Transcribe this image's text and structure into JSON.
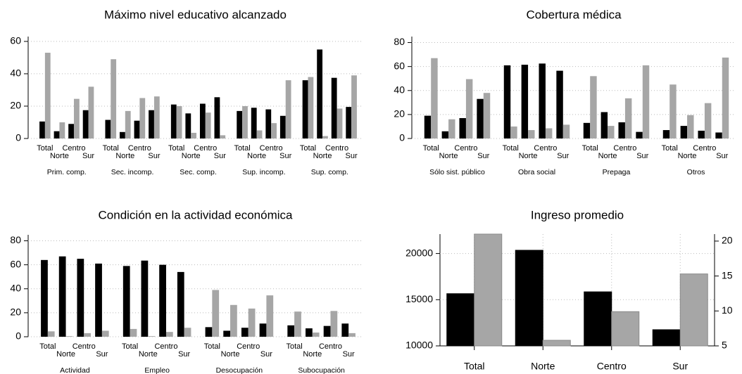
{
  "chart_data": [
    {
      "type": "grouped-bar",
      "title": "Máximo nivel educativo alcanzado",
      "groups": [
        "Prim. comp.",
        "Sec. incomp.",
        "Sec. comp.",
        "Sup. incomp.",
        "Sup. comp."
      ],
      "categories": [
        "Total",
        "Norte",
        "Centro",
        "Sur",
        "Total",
        "Norte",
        "Centro",
        "Sur",
        "Total",
        "Norte",
        "Centro",
        "Sur",
        "Total",
        "Norte",
        "Centro",
        "Sur",
        "Total",
        "Norte",
        "Centro",
        "Sur"
      ],
      "series": [
        {
          "color": "#000000",
          "values": [
            10.5,
            4.5,
            9,
            17.5,
            11.5,
            4,
            11,
            17.5,
            21,
            15.5,
            21.5,
            25.5,
            17,
            19,
            18,
            14,
            36,
            55,
            37.5,
            19.5
          ]
        },
        {
          "color": "#a6a6a6",
          "values": [
            53,
            10,
            24.5,
            32,
            49,
            17,
            25,
            26,
            20,
            3.5,
            16,
            2,
            20,
            5,
            9.5,
            36,
            38,
            1.5,
            18.5,
            39
          ]
        }
      ],
      "ylim": [
        0,
        63
      ],
      "yticks": [
        0,
        20,
        40,
        60
      ],
      "grid": true
    },
    {
      "type": "grouped-bar",
      "title": "Cobertura médica",
      "groups": [
        "Sólo sist. público",
        "Obra social",
        "Prepaga",
        "Otros"
      ],
      "categories": [
        "Total",
        "Norte",
        "Centro",
        "Sur",
        "Total",
        "Norte",
        "Centro",
        "Sur",
        "Total",
        "Norte",
        "Centro",
        "Sur",
        "Total",
        "Norte",
        "Centro",
        "Sur"
      ],
      "series": [
        {
          "color": "#000000",
          "values": [
            19,
            6,
            17,
            33,
            61,
            61.5,
            62.5,
            56.5,
            13,
            22,
            13.5,
            5.5,
            7,
            10.5,
            6.5,
            5
          ]
        },
        {
          "color": "#a6a6a6",
          "values": [
            67,
            16,
            49.5,
            38,
            10,
            7,
            8.5,
            11.5,
            52,
            10.5,
            33.5,
            61,
            45,
            19.5,
            29.5,
            67.5
          ]
        }
      ],
      "ylim": [
        0,
        85
      ],
      "yticks": [
        0,
        20,
        40,
        60,
        80
      ],
      "grid": true
    },
    {
      "type": "grouped-bar",
      "title": "Condición en la actividad económica",
      "groups": [
        "Actividad",
        "Empleo",
        "Desocupación",
        "Subocupación"
      ],
      "categories": [
        "Total",
        "Norte",
        "Centro",
        "Sur",
        "Total",
        "Norte",
        "Centro",
        "Sur",
        "Total",
        "Norte",
        "Centro",
        "Sur",
        "Total",
        "Norte",
        "Centro",
        "Sur"
      ],
      "series": [
        {
          "color": "#000000",
          "values": [
            64,
            67,
            65,
            61,
            59,
            63.5,
            60,
            54,
            8,
            5,
            7.5,
            11,
            9.5,
            7,
            9,
            11
          ]
        },
        {
          "color": "#a6a6a6",
          "values": [
            4.5,
            0.5,
            3,
            5,
            6.5,
            0.5,
            4,
            7.5,
            39,
            26.5,
            23.5,
            34.5,
            21,
            3.5,
            21.5,
            3
          ]
        }
      ],
      "ylim": [
        0,
        85
      ],
      "yticks": [
        0,
        20,
        40,
        60,
        80
      ],
      "grid": true
    },
    {
      "type": "bar",
      "title": "Ingreso promedio",
      "categories": [
        "Total",
        "Norte",
        "Centro",
        "Sur"
      ],
      "series": [
        {
          "color": "#000000",
          "values": [
            15650,
            20350,
            15850,
            11750
          ]
        },
        {
          "color": "#a6a6a6",
          "values": [
            21,
            5.8,
            9.9,
            15.3
          ],
          "axis": "y2"
        }
      ],
      "ylim": [
        10000,
        22100
      ],
      "yticks": [
        10000,
        15000,
        20000
      ],
      "y2lim": [
        5,
        21
      ],
      "y2ticks": [
        5,
        10,
        15,
        20
      ],
      "grid": true
    }
  ]
}
